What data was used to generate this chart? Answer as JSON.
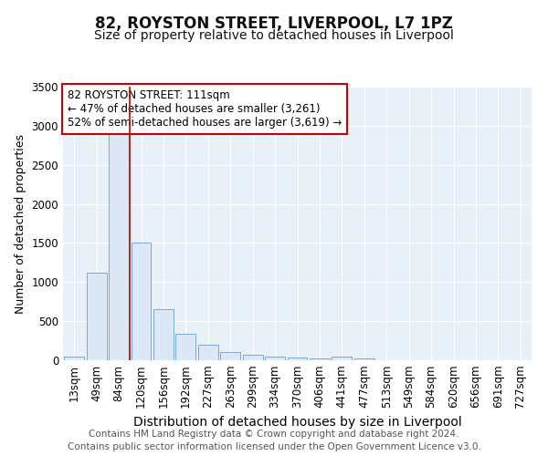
{
  "title1": "82, ROYSTON STREET, LIVERPOOL, L7 1PZ",
  "title2": "Size of property relative to detached houses in Liverpool",
  "xlabel": "Distribution of detached houses by size in Liverpool",
  "ylabel": "Number of detached properties",
  "categories": [
    "13sqm",
    "49sqm",
    "84sqm",
    "120sqm",
    "156sqm",
    "192sqm",
    "227sqm",
    "263sqm",
    "299sqm",
    "334sqm",
    "370sqm",
    "406sqm",
    "441sqm",
    "477sqm",
    "513sqm",
    "549sqm",
    "584sqm",
    "620sqm",
    "656sqm",
    "691sqm",
    "727sqm"
  ],
  "values": [
    50,
    1120,
    2900,
    1500,
    650,
    335,
    195,
    100,
    65,
    50,
    30,
    20,
    50,
    25,
    3,
    2,
    2,
    1,
    1,
    1,
    1
  ],
  "bar_color": "#dce8f5",
  "bar_edge_color": "#7aaad0",
  "vline_color": "#cc0000",
  "vline_pos": 2.5,
  "annotation_text": "82 ROYSTON STREET: 111sqm\n← 47% of detached houses are smaller (3,261)\n52% of semi-detached houses are larger (3,619) →",
  "annotation_box_color": "#ffffff",
  "annotation_border_color": "#cc0000",
  "ylim": [
    0,
    3500
  ],
  "yticks": [
    0,
    500,
    1000,
    1500,
    2000,
    2500,
    3000,
    3500
  ],
  "fig_bg_color": "#ffffff",
  "plot_bg_color": "#e8f0f8",
  "grid_color": "#ffffff",
  "footer_text": "Contains HM Land Registry data © Crown copyright and database right 2024.\nContains public sector information licensed under the Open Government Licence v3.0.",
  "title1_fontsize": 12,
  "title2_fontsize": 10,
  "xlabel_fontsize": 10,
  "ylabel_fontsize": 9,
  "tick_fontsize": 8.5,
  "annotation_fontsize": 8.5,
  "footer_fontsize": 7.5
}
